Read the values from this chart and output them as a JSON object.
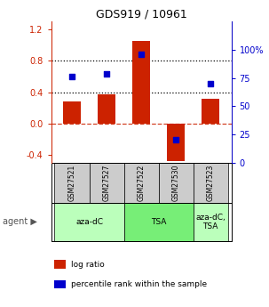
{
  "title": "GDS919 / 10961",
  "samples": [
    "GSM27521",
    "GSM27527",
    "GSM27522",
    "GSM27530",
    "GSM27523"
  ],
  "log_ratios": [
    0.28,
    0.37,
    1.05,
    -0.48,
    0.32
  ],
  "percentile_ranks": [
    76,
    79,
    96,
    20,
    70
  ],
  "agents": [
    {
      "label": "aza-dC",
      "span": [
        0,
        2
      ],
      "color": "#bbffbb"
    },
    {
      "label": "TSA",
      "span": [
        2,
        4
      ],
      "color": "#77ee77"
    },
    {
      "label": "aza-dC,\nTSA",
      "span": [
        4,
        5
      ],
      "color": "#bbffbb"
    }
  ],
  "ylim_left": [
    -0.5,
    1.3
  ],
  "ylim_right": [
    0,
    125
  ],
  "y_right_ticks": [
    0,
    25,
    50,
    75,
    100
  ],
  "y_right_labels": [
    "0",
    "25",
    "50",
    "75",
    "100%"
  ],
  "y_left_ticks": [
    -0.4,
    0.0,
    0.4,
    0.8,
    1.2
  ],
  "hlines_dotted": [
    0.4,
    0.8
  ],
  "hline_dashed": 0.0,
  "bar_color": "#cc2200",
  "dot_color": "#0000cc",
  "bar_width": 0.5,
  "legend_items": [
    {
      "color": "#cc2200",
      "label": "log ratio"
    },
    {
      "color": "#0000cc",
      "label": "percentile rank within the sample"
    }
  ],
  "sample_bg_color": "#cccccc"
}
